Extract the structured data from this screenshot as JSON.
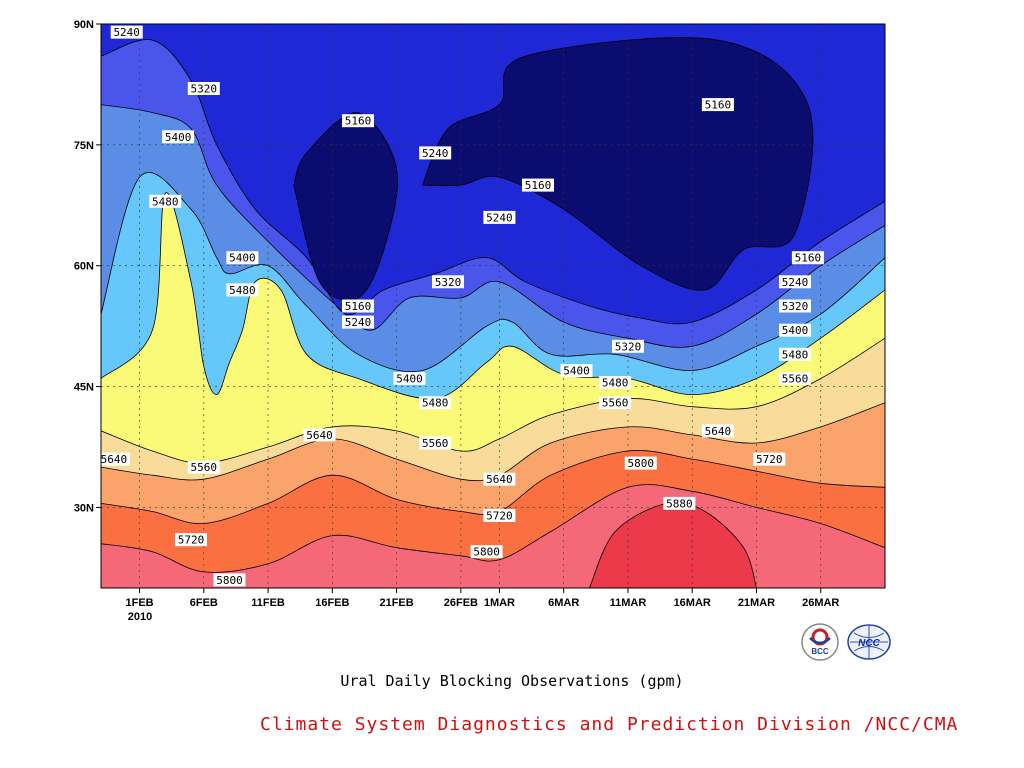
{
  "chart_data": {
    "type": "heatmap",
    "subtype": "filled-contour (Hovmoller, time vs latitude)",
    "title": "Ural Daily Blocking Observations (gpm)",
    "x_ticks": [
      "1FEB",
      "6FEB",
      "11FEB",
      "16FEB",
      "21FEB",
      "26FEB",
      "1MAR",
      "6MAR",
      "11MAR",
      "16MAR",
      "21MAR",
      "26MAR"
    ],
    "x_year_label": "2010",
    "y_ticks": [
      "30N",
      "45N",
      "60N",
      "75N",
      "90N"
    ],
    "ylim": [
      20,
      90
    ],
    "xlim": [
      "2010-01-29",
      "2010-03-31"
    ],
    "levels": [
      5160,
      5240,
      5320,
      5400,
      5480,
      5560,
      5640,
      5720,
      5800,
      5880
    ],
    "palette": [
      "#0b0c70",
      "#1e28d6",
      "#4a55ec",
      "#5a8ee6",
      "#66c8fa",
      "#fafa78",
      "#fadc9a",
      "#faa46c",
      "#fa7040",
      "#f56878",
      "#ec3a4a"
    ],
    "grid": true,
    "contour_lines": [
      {
        "value": 5800,
        "points": [
          [
            "2010-01-29",
            25.5
          ],
          [
            "2010-02-02",
            24.5
          ],
          [
            "2010-02-06",
            22
          ],
          [
            "2010-02-11",
            23
          ],
          [
            "2010-02-16",
            26.5
          ],
          [
            "2010-02-21",
            25
          ],
          [
            "2010-02-26",
            24
          ],
          [
            "2010-03-01",
            23.5
          ],
          [
            "2010-03-05",
            27
          ],
          [
            "2010-03-11",
            32.5
          ],
          [
            "2010-03-16",
            32
          ],
          [
            "2010-03-21",
            30
          ],
          [
            "2010-03-26",
            28
          ],
          [
            "2010-03-31",
            25
          ]
        ]
      },
      {
        "value": 5720,
        "points": [
          [
            "2010-01-29",
            30.5
          ],
          [
            "2010-02-02",
            29.5
          ],
          [
            "2010-02-06",
            28
          ],
          [
            "2010-02-11",
            30.5
          ],
          [
            "2010-02-16",
            34
          ],
          [
            "2010-02-21",
            31
          ],
          [
            "2010-02-26",
            29.5
          ],
          [
            "2010-03-01",
            29.5
          ],
          [
            "2010-03-05",
            34
          ],
          [
            "2010-03-11",
            37
          ],
          [
            "2010-03-16",
            36
          ],
          [
            "2010-03-21",
            34.5
          ],
          [
            "2010-03-26",
            33
          ],
          [
            "2010-03-31",
            32.5
          ]
        ]
      },
      {
        "value": 5640,
        "points": [
          [
            "2010-01-29",
            35
          ],
          [
            "2010-02-02",
            34
          ],
          [
            "2010-02-06",
            33.5
          ],
          [
            "2010-02-11",
            36
          ],
          [
            "2010-02-16",
            38.5
          ],
          [
            "2010-02-21",
            36
          ],
          [
            "2010-02-26",
            33.5
          ],
          [
            "2010-03-01",
            34
          ],
          [
            "2010-03-05",
            38
          ],
          [
            "2010-03-11",
            40
          ],
          [
            "2010-03-16",
            39
          ],
          [
            "2010-03-21",
            38
          ],
          [
            "2010-03-26",
            40
          ],
          [
            "2010-03-31",
            43
          ]
        ]
      },
      {
        "value": 5560,
        "points": [
          [
            "2010-01-29",
            39.5
          ],
          [
            "2010-02-02",
            37
          ],
          [
            "2010-02-06",
            35.5
          ],
          [
            "2010-02-11",
            37.5
          ],
          [
            "2010-02-16",
            40
          ],
          [
            "2010-02-21",
            39.5
          ],
          [
            "2010-02-26",
            37
          ],
          [
            "2010-03-01",
            38.5
          ],
          [
            "2010-03-05",
            41.5
          ],
          [
            "2010-03-11",
            43.5
          ],
          [
            "2010-03-16",
            42.5
          ],
          [
            "2010-03-21",
            42.5
          ],
          [
            "2010-03-26",
            46
          ],
          [
            "2010-03-31",
            51
          ]
        ]
      },
      {
        "value": 5480,
        "points": [
          [
            "2010-01-29",
            46
          ],
          [
            "2010-02-02",
            52
          ],
          [
            "2010-02-03",
            69
          ],
          [
            "2010-02-05",
            58
          ],
          [
            "2010-02-06",
            47.5
          ],
          [
            "2010-02-07",
            44
          ],
          [
            "2010-02-08",
            48
          ],
          [
            "2010-02-09",
            52
          ],
          [
            "2010-02-10",
            58
          ],
          [
            "2010-02-12",
            57
          ],
          [
            "2010-02-14",
            49
          ],
          [
            "2010-02-18",
            46
          ],
          [
            "2010-02-24",
            43.5
          ],
          [
            "2010-02-28",
            48
          ],
          [
            "2010-03-02",
            50
          ],
          [
            "2010-03-06",
            46.5
          ],
          [
            "2010-03-11",
            46
          ],
          [
            "2010-03-16",
            44
          ],
          [
            "2010-03-21",
            46
          ],
          [
            "2010-03-26",
            51
          ],
          [
            "2010-03-31",
            57
          ]
        ]
      },
      {
        "value": 5400,
        "points": [
          [
            "2010-01-29",
            54
          ],
          [
            "2010-02-01",
            71
          ],
          [
            "2010-02-05",
            67
          ],
          [
            "2010-02-07",
            61
          ],
          [
            "2010-02-08",
            59
          ],
          [
            "2010-02-11",
            60
          ],
          [
            "2010-02-14",
            55
          ],
          [
            "2010-02-18",
            49
          ],
          [
            "2010-02-23",
            47
          ],
          [
            "2010-02-28",
            52.5
          ],
          [
            "2010-03-02",
            53
          ],
          [
            "2010-03-05",
            49
          ],
          [
            "2010-03-10",
            49
          ],
          [
            "2010-03-16",
            47
          ],
          [
            "2010-03-21",
            50
          ],
          [
            "2010-03-26",
            54
          ],
          [
            "2010-03-31",
            61
          ]
        ]
      },
      {
        "value": 5320,
        "points": [
          [
            "2010-01-29",
            80
          ],
          [
            "2010-02-02",
            79
          ],
          [
            "2010-02-05",
            77
          ],
          [
            "2010-02-07",
            70
          ],
          [
            "2010-02-11",
            63
          ],
          [
            "2010-02-16",
            55.5
          ],
          [
            "2010-02-19",
            52
          ],
          [
            "2010-02-22",
            56
          ],
          [
            "2010-02-26",
            56
          ],
          [
            "2010-03-01",
            58
          ],
          [
            "2010-03-06",
            53
          ],
          [
            "2010-03-11",
            51
          ],
          [
            "2010-03-16",
            50
          ],
          [
            "2010-03-21",
            54
          ],
          [
            "2010-03-26",
            60
          ],
          [
            "2010-03-31",
            65
          ]
        ]
      },
      {
        "value": 5240,
        "points": [
          [
            "2010-01-29",
            86
          ],
          [
            "2010-02-02",
            88
          ],
          [
            "2010-02-05",
            83
          ],
          [
            "2010-02-07",
            75
          ],
          [
            "2010-02-10",
            67
          ],
          [
            "2010-02-14",
            61
          ],
          [
            "2010-02-17",
            54
          ],
          [
            "2010-02-20",
            57
          ],
          [
            "2010-02-24",
            59
          ],
          [
            "2010-02-28",
            61
          ],
          [
            "2010-03-03",
            58
          ],
          [
            "2010-03-08",
            55
          ],
          [
            "2010-03-12",
            53.5
          ],
          [
            "2010-03-16",
            53
          ],
          [
            "2010-03-21",
            57
          ],
          [
            "2010-03-26",
            63
          ],
          [
            "2010-03-31",
            68
          ]
        ]
      },
      {
        "value": 5160,
        "points": [
          [
            "2010-02-13",
            70
          ],
          [
            "2010-02-14",
            74
          ],
          [
            "2010-02-18",
            79
          ],
          [
            "2010-02-21",
            72
          ],
          [
            "2010-02-20",
            62
          ],
          [
            "2010-02-18",
            56
          ],
          [
            "2010-02-15",
            58
          ],
          [
            "2010-02-13",
            70
          ]
        ]
      },
      {
        "value": 5160,
        "points": [
          [
            "2010-02-23",
            70
          ],
          [
            "2010-02-25",
            77
          ],
          [
            "2010-03-01",
            80
          ],
          [
            "2010-03-03",
            86
          ],
          [
            "2010-03-18",
            88
          ],
          [
            "2010-03-25",
            80
          ],
          [
            "2010-03-24",
            64
          ],
          [
            "2010-03-20",
            62
          ],
          [
            "2010-03-17",
            57
          ],
          [
            "2010-03-12",
            60
          ],
          [
            "2010-03-06",
            67
          ],
          [
            "2010-03-01",
            71
          ],
          [
            "2010-02-26",
            70
          ],
          [
            "2010-02-23",
            70
          ]
        ]
      }
    ],
    "value_labels": [
      {
        "text": "5240",
        "x": "2010-01-31",
        "y": 89
      },
      {
        "text": "5320",
        "x": "2010-02-06",
        "y": 82
      },
      {
        "text": "5400",
        "x": "2010-02-04",
        "y": 76
      },
      {
        "text": "5480",
        "x": "2010-02-03",
        "y": 68
      },
      {
        "text": "5400",
        "x": "2010-02-09",
        "y": 61
      },
      {
        "text": "5480",
        "x": "2010-02-09",
        "y": 57
      },
      {
        "text": "5160",
        "x": "2010-02-18",
        "y": 78
      },
      {
        "text": "5240",
        "x": "2010-02-24",
        "y": 74
      },
      {
        "text": "5160",
        "x": "2010-02-18",
        "y": 55
      },
      {
        "text": "5240",
        "x": "2010-02-18",
        "y": 53
      },
      {
        "text": "5320",
        "x": "2010-02-25",
        "y": 58
      },
      {
        "text": "5240",
        "x": "2010-02-29",
        "y": 66
      },
      {
        "text": "5160",
        "x": "2010-03-04",
        "y": 70
      },
      {
        "text": "5160",
        "x": "2010-03-18",
        "y": 80
      },
      {
        "text": "5160",
        "x": "2010-03-25",
        "y": 61
      },
      {
        "text": "5240",
        "x": "2010-03-24",
        "y": 58
      },
      {
        "text": "5320",
        "x": "2010-03-24",
        "y": 55
      },
      {
        "text": "5400",
        "x": "2010-03-24",
        "y": 52
      },
      {
        "text": "5480",
        "x": "2010-03-24",
        "y": 49
      },
      {
        "text": "5560",
        "x": "2010-03-24",
        "y": 46
      },
      {
        "text": "5320",
        "x": "2010-03-11",
        "y": 50
      },
      {
        "text": "5400",
        "x": "2010-03-07",
        "y": 47
      },
      {
        "text": "5480",
        "x": "2010-03-10",
        "y": 45.5
      },
      {
        "text": "5560",
        "x": "2010-03-10",
        "y": 43
      },
      {
        "text": "5400",
        "x": "2010-02-22",
        "y": 46
      },
      {
        "text": "5480",
        "x": "2010-02-24",
        "y": 43
      },
      {
        "text": "5560",
        "x": "2010-02-24",
        "y": 38
      },
      {
        "text": "5640",
        "x": "2010-02-15",
        "y": 39
      },
      {
        "text": "5640",
        "x": "2010-03-01",
        "y": 33.5
      },
      {
        "text": "5720",
        "x": "2010-03-01",
        "y": 29
      },
      {
        "text": "5800",
        "x": "2010-02-28",
        "y": 24.5
      },
      {
        "text": "5640",
        "x": "2010-03-18",
        "y": 39.5
      },
      {
        "text": "5720",
        "x": "2010-03-22",
        "y": 36
      },
      {
        "text": "5800",
        "x": "2010-03-12",
        "y": 35.5
      },
      {
        "text": "5880",
        "x": "2010-03-15",
        "y": 30.5
      },
      {
        "text": "5640",
        "x": "2010-01-30",
        "y": 36
      },
      {
        "text": "5560",
        "x": "2010-02-06",
        "y": 35
      },
      {
        "text": "5720",
        "x": "2010-02-05",
        "y": 26
      },
      {
        "text": "5800",
        "x": "2010-02-08",
        "y": 21
      }
    ]
  },
  "logos": {
    "bcc_text": "BCC",
    "ncc_text": "NCC"
  },
  "captions": {
    "title": "Ural Daily Blocking Observations (gpm)",
    "credit": "Climate System Diagnostics and Prediction Division /NCC/CMA"
  }
}
